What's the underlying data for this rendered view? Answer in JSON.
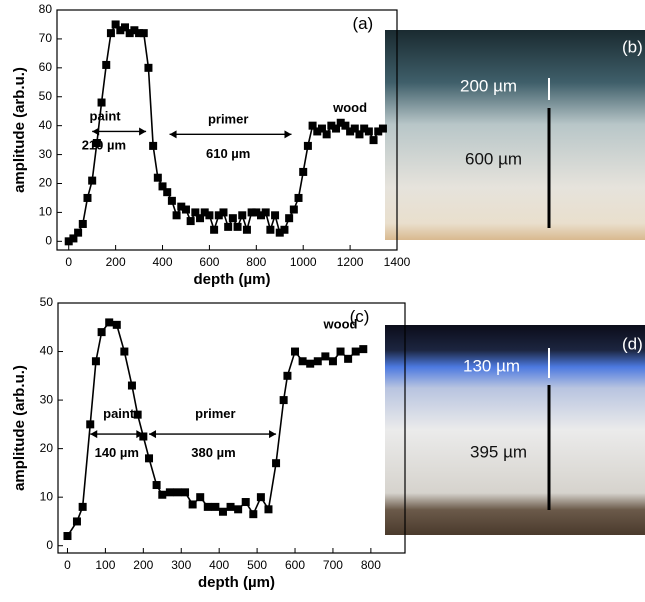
{
  "chart_data": [
    {
      "type": "line",
      "xlabel": "depth (µm)",
      "ylabel": "amplitude (arb.u.)",
      "xlim": [
        -50,
        1400
      ],
      "ylim": [
        -3,
        80
      ],
      "xticks": [
        0,
        200,
        400,
        600,
        800,
        1000,
        1200,
        1400
      ],
      "yticks": [
        0,
        10,
        20,
        30,
        40,
        50,
        60,
        70,
        80
      ],
      "series": [
        {
          "color": "#000000",
          "x": [
            0,
            20,
            40,
            60,
            80,
            100,
            120,
            140,
            160,
            180,
            200,
            220,
            240,
            260,
            280,
            300,
            320,
            340,
            360,
            380,
            400,
            420,
            440,
            460,
            480,
            500,
            520,
            540,
            560,
            580,
            600,
            620,
            640,
            660,
            680,
            700,
            720,
            740,
            760,
            780,
            800,
            820,
            840,
            860,
            880,
            900,
            920,
            940,
            960,
            980,
            1000,
            1020,
            1040,
            1060,
            1080,
            1100,
            1120,
            1140,
            1160,
            1180,
            1200,
            1220,
            1240,
            1260,
            1280,
            1300,
            1320,
            1340
          ],
          "values": [
            0,
            1,
            3,
            6,
            15,
            21,
            34,
            48,
            61,
            72,
            75,
            73,
            74,
            72,
            73,
            72,
            72,
            60,
            33,
            22,
            19,
            17,
            14,
            9,
            12,
            11,
            7,
            10,
            8,
            10,
            9,
            4,
            9,
            10,
            5,
            8,
            5,
            9,
            4,
            10,
            10,
            9,
            10,
            4,
            9,
            3,
            4,
            8,
            11,
            15,
            24,
            33,
            40,
            38,
            39,
            37,
            40,
            39,
            41,
            40,
            38,
            39,
            37,
            39,
            38,
            35,
            38,
            39
          ]
        }
      ],
      "annotations": [
        "(a)",
        "paint",
        "210 µm",
        "primer",
        "610 µm",
        "wood"
      ]
    },
    {
      "type": "line",
      "xlabel": "depth (µm)",
      "ylabel": "amplitude (arb.u.)",
      "xlim": [
        -25,
        890
      ],
      "ylim": [
        -1.5,
        50
      ],
      "xticks": [
        0,
        100,
        200,
        300,
        400,
        500,
        600,
        700,
        800
      ],
      "yticks": [
        0,
        10,
        20,
        30,
        40,
        50
      ],
      "series": [
        {
          "color": "#000000",
          "x": [
            0,
            25,
            40,
            60,
            75,
            90,
            110,
            130,
            150,
            170,
            185,
            200,
            215,
            235,
            250,
            270,
            290,
            310,
            330,
            350,
            370,
            390,
            410,
            430,
            450,
            470,
            490,
            510,
            530,
            550,
            570,
            580,
            600,
            620,
            640,
            660,
            680,
            700,
            720,
            740,
            760,
            780
          ],
          "values": [
            2,
            5,
            8,
            25,
            38,
            44,
            46,
            45.5,
            40,
            33,
            27,
            22.5,
            18,
            12.5,
            10.5,
            11,
            11,
            11,
            8.5,
            10,
            8,
            8,
            7,
            8,
            7.5,
            9,
            6.5,
            10,
            7.5,
            17,
            30,
            35,
            40,
            38,
            37.5,
            38,
            39,
            38,
            40,
            38.5,
            40,
            40.5
          ]
        }
      ],
      "annotations": [
        "(c)",
        "paint",
        "140 µm",
        "primer",
        "380 µm",
        "wood"
      ]
    }
  ],
  "images": [
    {
      "label": "(b)",
      "scale_labels": [
        "200 µm",
        "600 µm"
      ]
    },
    {
      "label": "(d)",
      "scale_labels": [
        "130 µm",
        "395 µm"
      ]
    }
  ]
}
